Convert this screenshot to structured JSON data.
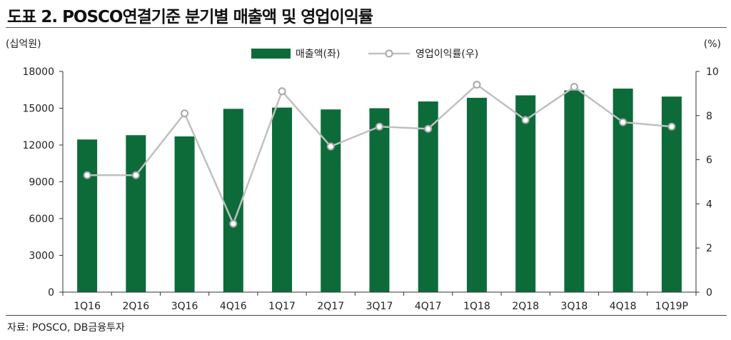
{
  "title": "도표 2. POSCO연결기준 분기별 매출액 및 영업이익률",
  "source": "자료: POSCO, DB금융투자",
  "chart_data": {
    "type": "bar+line",
    "categories": [
      "1Q16",
      "2Q16",
      "3Q16",
      "4Q16",
      "1Q17",
      "2Q17",
      "3Q17",
      "4Q17",
      "1Q18",
      "2Q18",
      "3Q18",
      "4Q18",
      "1Q19P"
    ],
    "series": [
      {
        "name": "매출액(좌)",
        "type": "bar",
        "axis": "left",
        "color": "#0d6b3a",
        "values": [
          12450,
          12800,
          12700,
          14950,
          15050,
          14900,
          15000,
          15550,
          15850,
          16050,
          16450,
          16600,
          15950
        ]
      },
      {
        "name": "영업이익률(우)",
        "type": "line",
        "axis": "right",
        "color": "#c0c0c0",
        "values": [
          5.3,
          5.3,
          8.1,
          3.1,
          9.1,
          6.6,
          7.5,
          7.4,
          9.4,
          7.8,
          9.3,
          7.7,
          7.5
        ]
      }
    ],
    "y_left": {
      "unit": "(십억원)",
      "min": 0,
      "max": 18000,
      "ticks": [
        0,
        3000,
        6000,
        9000,
        12000,
        15000,
        18000
      ]
    },
    "y_right": {
      "unit": "(%)",
      "min": 0,
      "max": 10,
      "ticks": [
        0,
        2,
        4,
        6,
        8,
        10
      ]
    },
    "legend_position": "top-center",
    "grid": false
  }
}
